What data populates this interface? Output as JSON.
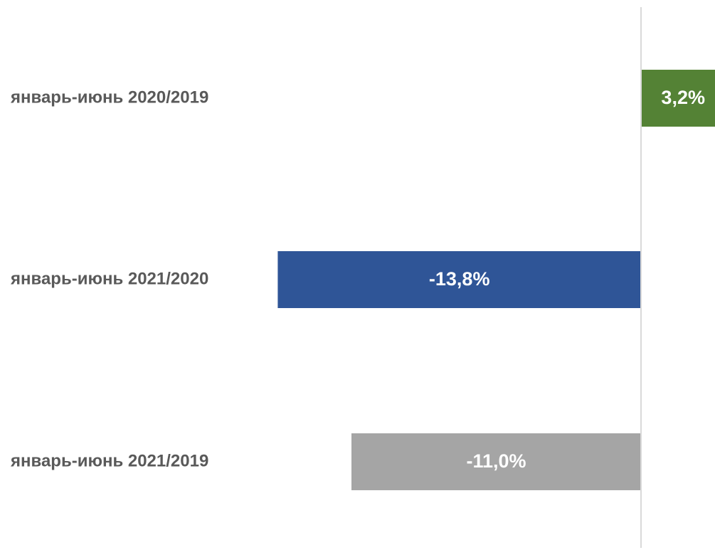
{
  "chart_data": {
    "type": "bar",
    "orientation": "horizontal",
    "categories": [
      "январь-июнь 2020/2019",
      "январь-июнь 2021/2020",
      "январь-июнь 2021/2019"
    ],
    "values": [
      3.2,
      -13.8,
      -11.0
    ],
    "value_labels": [
      "3,2%",
      "-13,8%",
      "-11,0%"
    ],
    "unit": "%",
    "colors": [
      "#548235",
      "#2F5597",
      "#A5A5A5"
    ],
    "zero_line_color": "#D9D9D9",
    "grid": false,
    "legend": "none"
  }
}
